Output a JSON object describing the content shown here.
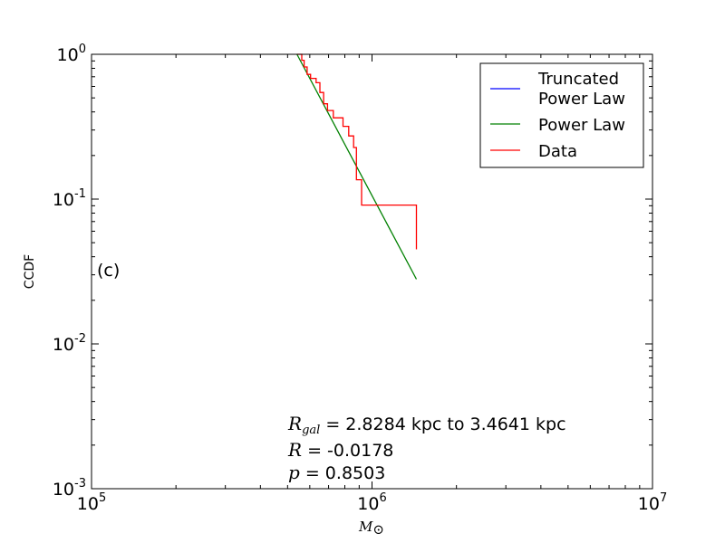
{
  "chart_data": {
    "type": "line",
    "xlabel": "M",
    "xlabel_sub": "⊙",
    "ylabel": "CCDF",
    "xscale": "log",
    "yscale": "log",
    "xlim": [
      100000,
      10000000
    ],
    "ylim": [
      0.001,
      1
    ],
    "x_ticks": [
      {
        "value": 100000,
        "base": "10",
        "exp": "5"
      },
      {
        "value": 1000000,
        "base": "10",
        "exp": "6"
      },
      {
        "value": 10000000,
        "base": "10",
        "exp": "7"
      }
    ],
    "y_ticks": [
      {
        "value": 1,
        "base": "10",
        "exp": "0"
      },
      {
        "value": 0.1,
        "base": "10",
        "exp": "-1"
      },
      {
        "value": 0.01,
        "base": "10",
        "exp": "-2"
      },
      {
        "value": 0.001,
        "base": "10",
        "exp": "-3"
      }
    ],
    "legend_position": "top-right",
    "series": [
      {
        "name": "Truncated\nPower Law",
        "color": "#0000ff",
        "style": "line",
        "x": [],
        "y": []
      },
      {
        "name": "Power Law",
        "color": "#008000",
        "style": "line",
        "x": [
          540000,
          1440000
        ],
        "y": [
          1.0,
          0.028
        ]
      },
      {
        "name": "Data",
        "color": "#ff0000",
        "style": "step",
        "x": [
          540000,
          562000,
          573000,
          587000,
          604000,
          632000,
          652000,
          672000,
          694000,
          728000,
          788000,
          826000,
          860000,
          880000,
          918000,
          1440000
        ],
        "y": [
          1.0,
          0.909,
          0.818,
          0.727,
          0.682,
          0.636,
          0.545,
          0.455,
          0.409,
          0.364,
          0.318,
          0.273,
          0.227,
          0.136,
          0.091,
          0.045
        ]
      }
    ],
    "annotations": {
      "panel": "(c)",
      "line1_sym": "R",
      "line1_sub": "gal",
      "line1_text": " = 2.8284 kpc to 3.4641 kpc",
      "line2_sym": "R",
      "line2_text": " = -0.0178",
      "line3_sym": "p",
      "line3_text": " = 0.8503"
    }
  }
}
